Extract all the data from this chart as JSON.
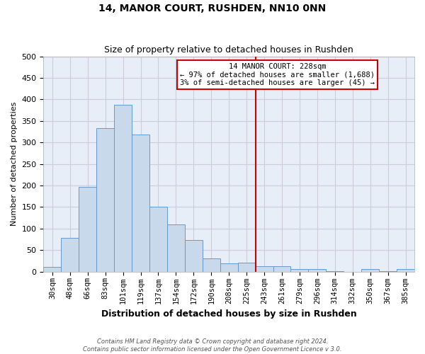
{
  "title": "14, MANOR COURT, RUSHDEN, NN10 0NN",
  "subtitle": "Size of property relative to detached houses in Rushden",
  "xlabel": "Distribution of detached houses by size in Rushden",
  "ylabel": "Number of detached properties",
  "bar_color": "#c9d9ec",
  "bar_edge_color": "#6699cc",
  "background_color": "#e8eef8",
  "grid_color": "#ccccdd",
  "fig_bg_color": "#ffffff",
  "categories": [
    "30sqm",
    "48sqm",
    "66sqm",
    "83sqm",
    "101sqm",
    "119sqm",
    "137sqm",
    "154sqm",
    "172sqm",
    "190sqm",
    "208sqm",
    "225sqm",
    "243sqm",
    "261sqm",
    "279sqm",
    "296sqm",
    "314sqm",
    "332sqm",
    "350sqm",
    "367sqm",
    "385sqm"
  ],
  "values": [
    10,
    78,
    197,
    333,
    388,
    319,
    151,
    110,
    74,
    31,
    19,
    20,
    12,
    12,
    6,
    5,
    1,
    0,
    5,
    1,
    5
  ],
  "ylim": [
    0,
    500
  ],
  "yticks": [
    0,
    50,
    100,
    150,
    200,
    250,
    300,
    350,
    400,
    450,
    500
  ],
  "vline_color": "#cc0000",
  "vline_x": 11.5,
  "annotation_title": "14 MANOR COURT: 228sqm",
  "annotation_line1": "← 97% of detached houses are smaller (1,688)",
  "annotation_line2": "3% of semi-detached houses are larger (45) →",
  "annotation_box_color": "#ffffff",
  "annotation_box_edge": "#cc0000",
  "footer_line1": "Contains HM Land Registry data © Crown copyright and database right 2024.",
  "footer_line2": "Contains public sector information licensed under the Open Government Licence v 3.0.",
  "title_fontsize": 10,
  "subtitle_fontsize": 9,
  "ylabel_fontsize": 8,
  "xlabel_fontsize": 9,
  "annotation_fontsize": 7.5,
  "footer_fontsize": 6.0,
  "tick_fontsize": 7.5,
  "ytick_fontsize": 8
}
